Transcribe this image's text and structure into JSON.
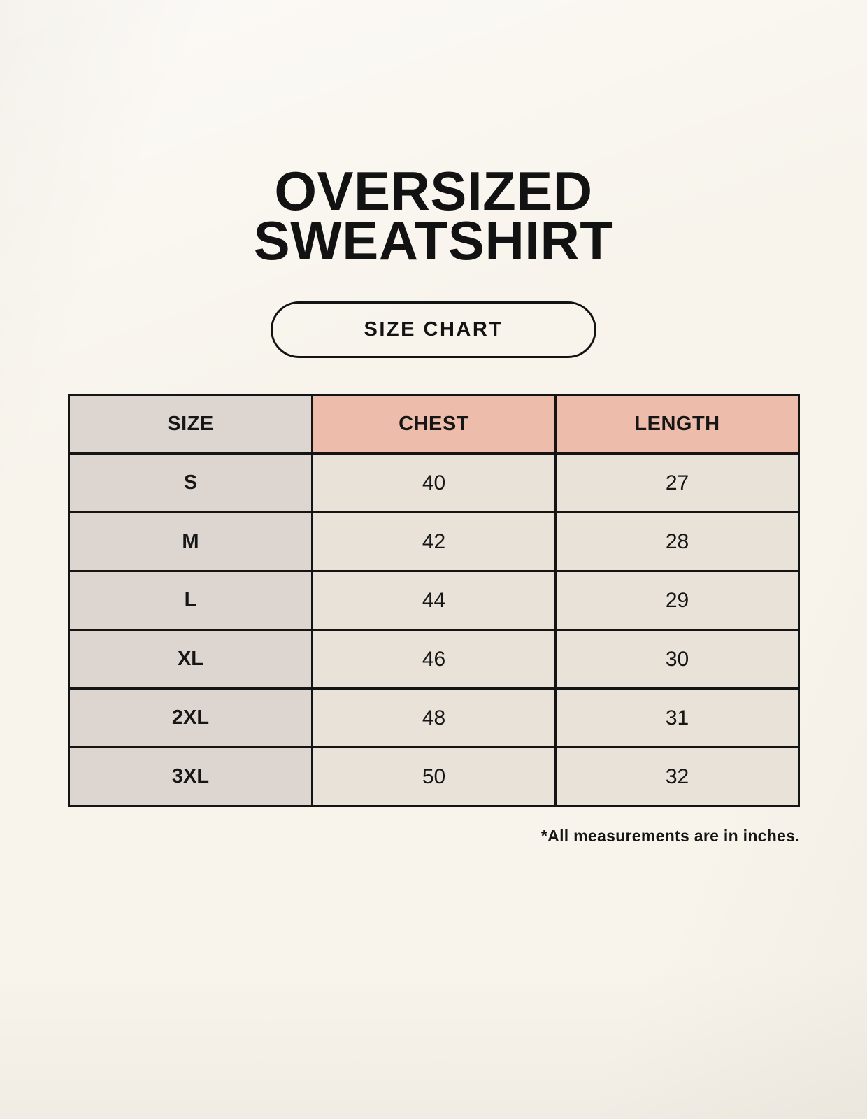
{
  "title": {
    "line1": "OVERSIZED",
    "line2": "SWEATSHIRT"
  },
  "badge": {
    "label": "SIZE CHART"
  },
  "footnote": "*All measurements are in inches.",
  "colors": {
    "background": "#f8f4ec",
    "header_accent": "#edbcab",
    "size_column_fill": "#ddd5cf",
    "cell_fill": "#e9e2d8",
    "border": "#141414",
    "text": "#161616"
  },
  "chart_data": {
    "type": "table",
    "title": "OVERSIZED SWEATSHIRT",
    "subtitle": "SIZE CHART",
    "columns": [
      "SIZE",
      "CHEST",
      "LENGTH"
    ],
    "rows": [
      [
        "S",
        "40",
        "27"
      ],
      [
        "M",
        "42",
        "28"
      ],
      [
        "L",
        "44",
        "29"
      ],
      [
        "XL",
        "46",
        "30"
      ],
      [
        "2XL",
        "48",
        "31"
      ],
      [
        "3XL",
        "50",
        "32"
      ]
    ],
    "units": "inches",
    "note": "*All measurements are in inches.",
    "layout": {
      "grid": true,
      "header_fill": "#edbcab",
      "first_column_fill": "#ddd5cf"
    }
  }
}
